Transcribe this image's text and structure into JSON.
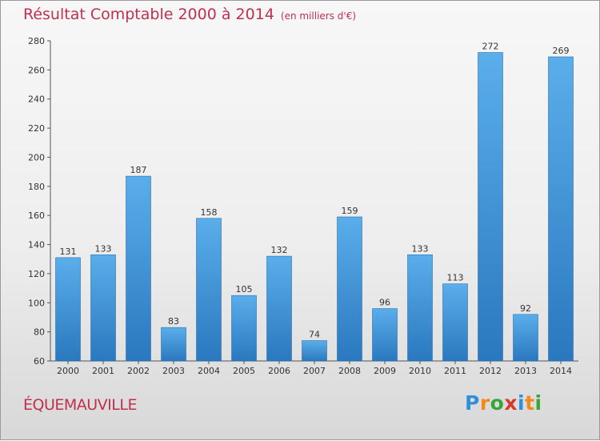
{
  "title": "Résultat Comptable 2000 à 2014",
  "unit_note": "(en milliers d'€)",
  "commune": "ÉQUEMAUVILLE",
  "logo": {
    "letters": [
      "P",
      "r",
      "o",
      "x",
      "i",
      "t",
      "i"
    ],
    "colors": [
      "#2f8fd8",
      "#f08a1c",
      "#3aa63a",
      "#d63a2a",
      "#2f8fd8",
      "#f08a1c",
      "#3aa63a"
    ]
  },
  "colors": {
    "bar": "#4a9fe0",
    "bar_dark": "#2a78bf",
    "title": "#c0304f"
  },
  "chart_data": {
    "type": "bar",
    "title": "Résultat Comptable 2000 à 2014",
    "categories": [
      "2000",
      "2001",
      "2002",
      "2003",
      "2004",
      "2005",
      "2006",
      "2007",
      "2008",
      "2009",
      "2010",
      "2011",
      "2012",
      "2013",
      "2014"
    ],
    "values": [
      131,
      133,
      187,
      83,
      158,
      105,
      132,
      74,
      159,
      96,
      133,
      113,
      272,
      92,
      269
    ],
    "ylim": [
      60,
      280
    ],
    "yticks": [
      60,
      80,
      100,
      120,
      140,
      160,
      180,
      200,
      220,
      240,
      260,
      280
    ],
    "grid": false
  }
}
